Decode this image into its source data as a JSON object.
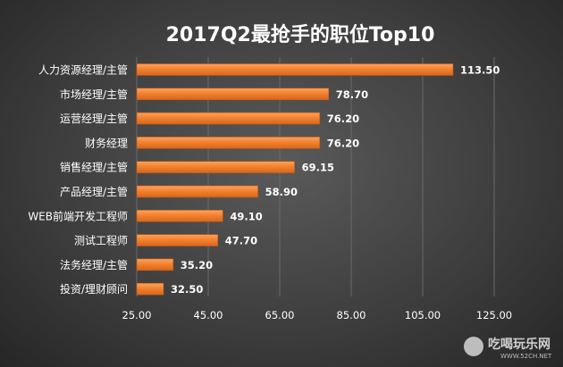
{
  "chart_data": {
    "type": "bar",
    "orientation": "horizontal",
    "title": "2017Q2最抢手的职位Top10",
    "categories": [
      "人力资源经理/主管",
      "市场经理/主管",
      "运营经理/主管",
      "财务经理",
      "销售经理/主管",
      "产品经理/主管",
      "WEB前端开发工程师",
      "测试工程师",
      "法务经理/主管",
      "投资/理财顾问"
    ],
    "values": [
      113.5,
      78.7,
      76.2,
      76.2,
      69.15,
      58.9,
      49.1,
      47.7,
      35.2,
      32.5
    ],
    "value_labels": [
      "113.50",
      "78.70",
      "76.20",
      "76.20",
      "69.15",
      "58.90",
      "49.10",
      "47.70",
      "35.20",
      "32.50"
    ],
    "xlim": [
      25,
      125
    ],
    "xticks": [
      "25.00",
      "45.00",
      "65.00",
      "85.00",
      "105.00",
      "125.00"
    ],
    "xlabel": "",
    "ylabel": "",
    "grid": true,
    "bar_color": "#f07f2e"
  },
  "watermark": {
    "badge": "52ch",
    "text": "吃喝玩乐网",
    "url": "WWW.52CH.NET"
  }
}
